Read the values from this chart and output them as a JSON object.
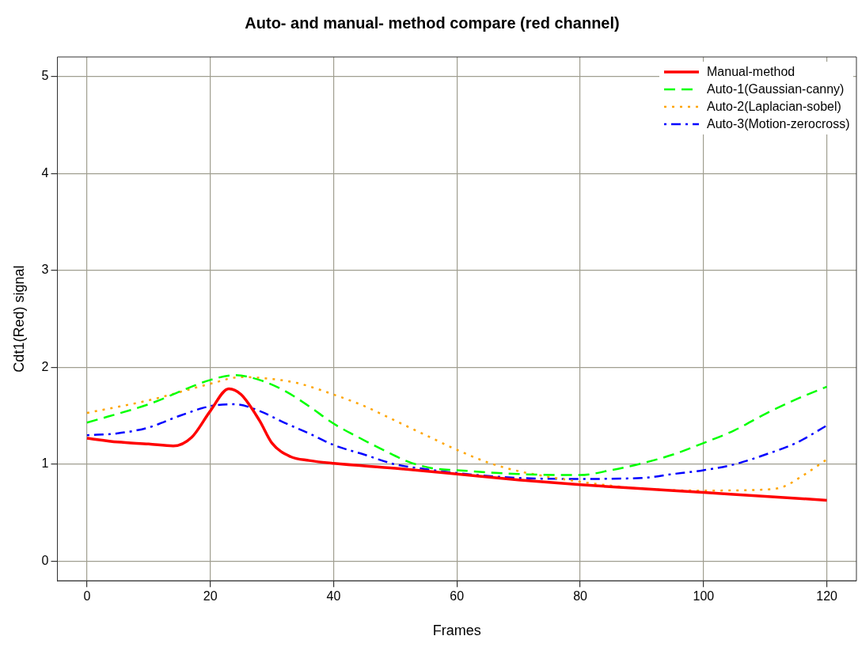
{
  "chart_data": {
    "type": "line",
    "title": "Auto- and manual- method compare (red channel)",
    "xlabel": "Frames",
    "ylabel": "Cdt1(Red) signal",
    "xlim": [
      -4.8,
      124.8
    ],
    "xticks": [
      0,
      20,
      40,
      60,
      80,
      100,
      120
    ],
    "ylim": [
      -0.2,
      5.2
    ],
    "yticks": [
      0,
      1,
      2,
      3,
      4,
      5
    ],
    "grid": true,
    "legend": "top right",
    "marker": "none",
    "series": [
      {
        "name": "Manual-method",
        "color": "#ff0000",
        "line_style": "solid",
        "x": [
          0,
          5,
          10,
          14,
          17,
          20,
          23,
          25,
          28,
          30,
          33,
          36,
          40,
          50,
          60,
          70,
          80,
          90,
          100,
          110,
          120
        ],
        "values": [
          1.27,
          1.23,
          1.21,
          1.19,
          1.28,
          1.55,
          1.78,
          1.72,
          1.45,
          1.22,
          1.08,
          1.04,
          1.01,
          0.96,
          0.9,
          0.84,
          0.79,
          0.75,
          0.71,
          0.67,
          0.63
        ]
      },
      {
        "name": "Auto-1(Gaussian-canny)",
        "color": "#00ff00",
        "line_style": "dashed",
        "x": [
          0,
          10,
          20,
          24,
          28,
          32,
          36,
          40,
          44,
          48,
          52,
          56,
          60,
          70,
          80,
          85,
          90,
          95,
          100,
          105,
          110,
          115,
          120
        ],
        "values": [
          1.43,
          1.62,
          1.87,
          1.92,
          1.87,
          1.76,
          1.6,
          1.42,
          1.28,
          1.15,
          1.03,
          0.96,
          0.94,
          0.9,
          0.89,
          0.94,
          1.01,
          1.1,
          1.22,
          1.35,
          1.52,
          1.67,
          1.8
        ]
      },
      {
        "name": "Auto-2(Laplacian-sobel)",
        "color": "#ffa500",
        "line_style": "dotted",
        "x": [
          0,
          10,
          20,
          25,
          30,
          34,
          40,
          45,
          50,
          55,
          60,
          65,
          70,
          75,
          80,
          90,
          100,
          110,
          113,
          116,
          120
        ],
        "values": [
          1.53,
          1.66,
          1.83,
          1.9,
          1.88,
          1.84,
          1.72,
          1.6,
          1.45,
          1.3,
          1.15,
          1.02,
          0.93,
          0.87,
          0.82,
          0.75,
          0.73,
          0.74,
          0.77,
          0.88,
          1.05
        ]
      },
      {
        "name": "Auto-3(Motion-zerocross)",
        "color": "#0000ff",
        "line_style": "dashdot",
        "x": [
          0,
          5,
          10,
          15,
          20,
          24,
          28,
          32,
          36,
          40,
          45,
          50,
          55,
          60,
          70,
          80,
          90,
          95,
          100,
          105,
          110,
          115,
          120
        ],
        "values": [
          1.3,
          1.32,
          1.38,
          1.5,
          1.6,
          1.62,
          1.55,
          1.43,
          1.32,
          1.2,
          1.1,
          1.0,
          0.95,
          0.91,
          0.86,
          0.85,
          0.86,
          0.9,
          0.94,
          1.0,
          1.1,
          1.22,
          1.4
        ]
      }
    ]
  }
}
